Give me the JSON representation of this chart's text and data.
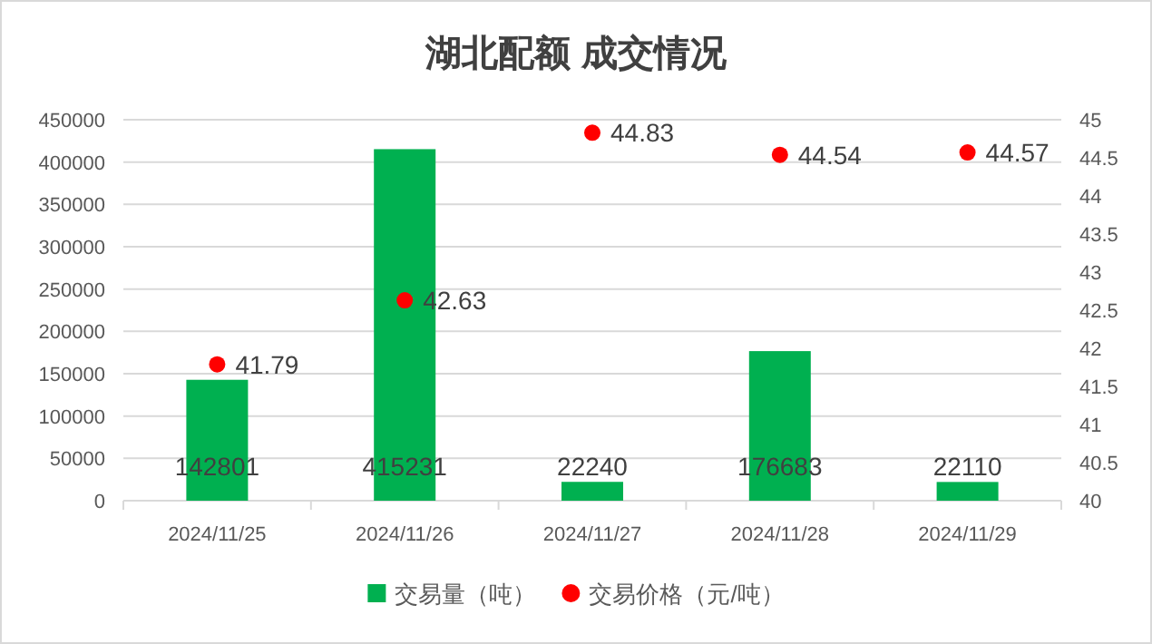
{
  "chart_data": {
    "type": "bar",
    "title": "湖北配额 成交情况",
    "categories": [
      "2024/11/25",
      "2024/11/26",
      "2024/11/27",
      "2024/11/28",
      "2024/11/29"
    ],
    "series": [
      {
        "name": "交易量（吨）",
        "color": "#00b050",
        "values": [
          142801,
          415231,
          22240,
          176683,
          22110
        ]
      },
      {
        "name": "交易价格（元/吨）",
        "type": "scatter",
        "axis": "y2",
        "color": "#ff0000",
        "marker": "circle",
        "values": [
          41.79,
          42.63,
          44.83,
          44.54,
          44.57
        ]
      }
    ],
    "ylim": [
      0,
      450000
    ],
    "yticks": [
      0,
      50000,
      100000,
      150000,
      200000,
      250000,
      300000,
      350000,
      400000,
      450000
    ],
    "y2lim": [
      40,
      45
    ],
    "y2ticks": [
      40,
      40.5,
      41,
      41.5,
      42,
      42.5,
      43,
      43.5,
      44,
      44.5,
      45
    ],
    "grid": "y",
    "legend": "bottom",
    "data_labels": true
  }
}
